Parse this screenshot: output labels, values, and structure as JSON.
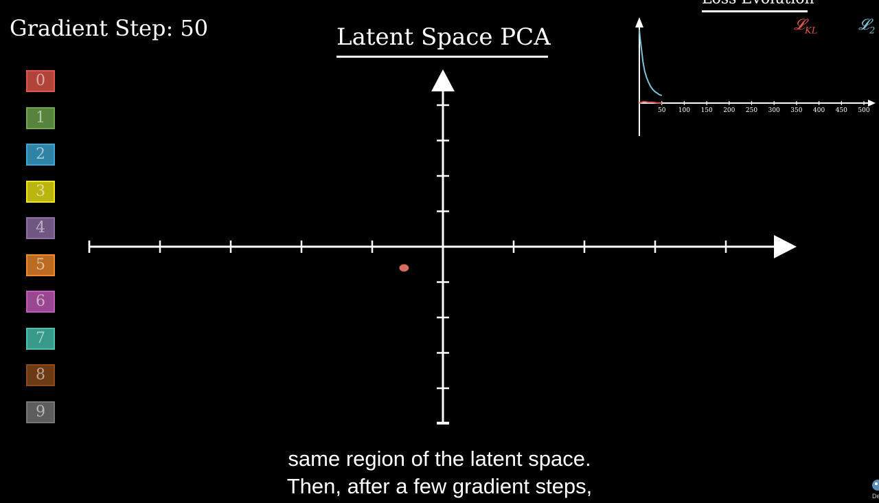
{
  "gradient_step": {
    "label": "Gradient Step:",
    "value": "50"
  },
  "chart_data": [
    {
      "type": "scatter",
      "title": "Latent Space PCA",
      "xlabel": "",
      "ylabel": "",
      "x_ticks": 10,
      "y_ticks": 9,
      "legend_position": "left",
      "categories": [
        "0",
        "1",
        "2",
        "3",
        "4",
        "5",
        "6",
        "7",
        "8",
        "9"
      ],
      "category_colors": [
        "#e2574c",
        "#6fa84f",
        "#3ba8d6",
        "#f0e814",
        "#8e6fa6",
        "#f08a2c",
        "#c45bb8",
        "#46c4ad",
        "#8c4a1c",
        "#777777"
      ],
      "points": [
        {
          "x": -0.55,
          "y": -0.3,
          "category": "5"
        }
      ]
    },
    {
      "type": "line",
      "title": "Loss Evolution",
      "xlabel": "",
      "ylabel": "",
      "x_ticks": [
        50,
        100,
        150,
        200,
        250,
        300,
        350,
        400,
        450,
        500
      ],
      "xlim": [
        0,
        500
      ],
      "ylim": [
        0,
        1
      ],
      "series": [
        {
          "name": "𝓛KL",
          "color": "#e2574c",
          "x": [
            0,
            10,
            20,
            30,
            40,
            50
          ],
          "y": [
            0.0,
            0.02,
            0.01,
            0.01,
            0.0,
            0.0
          ]
        },
        {
          "name": "𝓛2",
          "color": "#7cc6da",
          "x": [
            0,
            2,
            5,
            8,
            12,
            16,
            20,
            25,
            30,
            35,
            40,
            45,
            50
          ],
          "y": [
            0.97,
            0.85,
            0.7,
            0.55,
            0.42,
            0.34,
            0.28,
            0.22,
            0.18,
            0.15,
            0.13,
            0.11,
            0.1
          ]
        }
      ],
      "legend": [
        {
          "script": "𝓛",
          "sub": "KL",
          "color": "#e2574c"
        },
        {
          "script": "𝓛",
          "sub": "2",
          "color": "#7cc6da"
        }
      ]
    }
  ],
  "subtitles": {
    "line1": "same region of the latent space.",
    "line2": "Then, after a few gradient steps,"
  },
  "channel_logo": {
    "icon": "channel-logo-icon",
    "text": "De"
  }
}
